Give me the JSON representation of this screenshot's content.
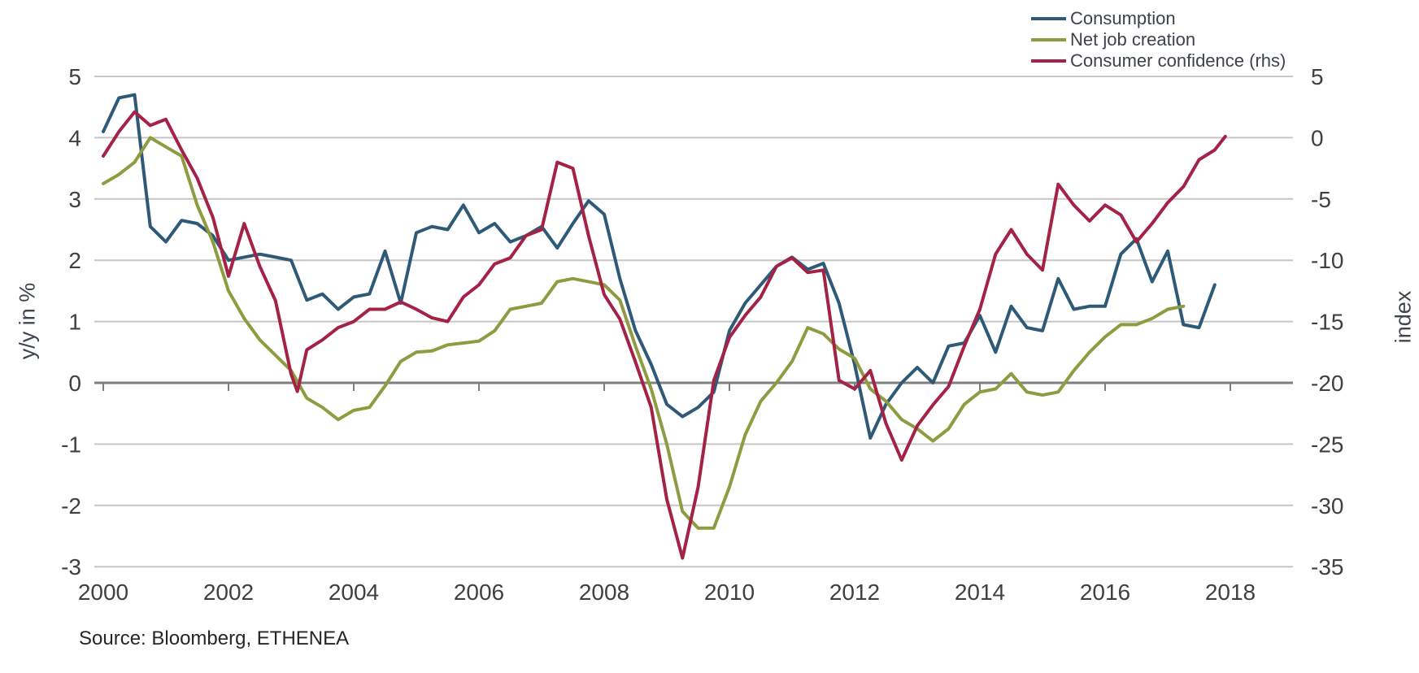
{
  "chart_data": {
    "type": "line",
    "title": "",
    "source": "Source: Bloomberg, ETHENEA",
    "left_axis": {
      "label": "y/y in %",
      "min": -3,
      "max": 5,
      "ticks": [
        5,
        4,
        3,
        2,
        1,
        0,
        -1,
        -2,
        -3
      ]
    },
    "right_axis": {
      "label": "index",
      "min": -35,
      "max": 5,
      "ticks": [
        5,
        0,
        -5,
        -10,
        -15,
        -20,
        -25,
        -30,
        -35
      ]
    },
    "x_axis": {
      "tick_years": [
        2000,
        2002,
        2004,
        2006,
        2008,
        2010,
        2012,
        2014,
        2016,
        2018
      ],
      "grid": "horizontal-only"
    },
    "legend_position": "top-right",
    "series": [
      {
        "name": "Consumption",
        "axis": "left",
        "color": "#2e5a78",
        "points": [
          [
            2000.0,
            4.1
          ],
          [
            2000.25,
            4.65
          ],
          [
            2000.5,
            4.7
          ],
          [
            2000.75,
            2.55
          ],
          [
            2001.0,
            2.3
          ],
          [
            2001.25,
            2.65
          ],
          [
            2001.5,
            2.6
          ],
          [
            2001.75,
            2.4
          ],
          [
            2002.0,
            2.0
          ],
          [
            2002.25,
            2.05
          ],
          [
            2002.5,
            2.1
          ],
          [
            2002.75,
            2.05
          ],
          [
            2003.0,
            2.0
          ],
          [
            2003.25,
            1.35
          ],
          [
            2003.5,
            1.45
          ],
          [
            2003.75,
            1.2
          ],
          [
            2004.0,
            1.4
          ],
          [
            2004.25,
            1.45
          ],
          [
            2004.5,
            2.15
          ],
          [
            2004.75,
            1.3
          ],
          [
            2005.0,
            2.45
          ],
          [
            2005.25,
            2.55
          ],
          [
            2005.5,
            2.5
          ],
          [
            2005.75,
            2.9
          ],
          [
            2006.0,
            2.45
          ],
          [
            2006.25,
            2.6
          ],
          [
            2006.5,
            2.3
          ],
          [
            2006.75,
            2.4
          ],
          [
            2007.0,
            2.55
          ],
          [
            2007.25,
            2.2
          ],
          [
            2007.5,
            2.6
          ],
          [
            2007.75,
            2.97
          ],
          [
            2008.0,
            2.75
          ],
          [
            2008.25,
            1.7
          ],
          [
            2008.5,
            0.85
          ],
          [
            2008.75,
            0.3
          ],
          [
            2009.0,
            -0.35
          ],
          [
            2009.25,
            -0.55
          ],
          [
            2009.5,
            -0.4
          ],
          [
            2009.75,
            -0.15
          ],
          [
            2010.0,
            0.85
          ],
          [
            2010.25,
            1.3
          ],
          [
            2010.5,
            1.6
          ],
          [
            2010.75,
            1.9
          ],
          [
            2011.0,
            2.05
          ],
          [
            2011.25,
            1.85
          ],
          [
            2011.5,
            1.95
          ],
          [
            2011.75,
            1.3
          ],
          [
            2012.0,
            0.3
          ],
          [
            2012.25,
            -0.9
          ],
          [
            2012.5,
            -0.35
          ],
          [
            2012.75,
            0.0
          ],
          [
            2013.0,
            0.25
          ],
          [
            2013.25,
            0.0
          ],
          [
            2013.5,
            0.6
          ],
          [
            2013.75,
            0.65
          ],
          [
            2014.0,
            1.1
          ],
          [
            2014.25,
            0.5
          ],
          [
            2014.5,
            1.25
          ],
          [
            2014.75,
            0.9
          ],
          [
            2015.0,
            0.85
          ],
          [
            2015.25,
            1.7
          ],
          [
            2015.5,
            1.2
          ],
          [
            2015.75,
            1.25
          ],
          [
            2016.0,
            1.25
          ],
          [
            2016.25,
            2.1
          ],
          [
            2016.5,
            2.35
          ],
          [
            2016.75,
            1.65
          ],
          [
            2017.0,
            2.15
          ],
          [
            2017.25,
            0.95
          ],
          [
            2017.5,
            0.9
          ],
          [
            2017.75,
            1.6
          ]
        ]
      },
      {
        "name": "Net job creation",
        "axis": "left",
        "color": "#8f9b40",
        "points": [
          [
            2000.0,
            3.25
          ],
          [
            2000.25,
            3.4
          ],
          [
            2000.5,
            3.6
          ],
          [
            2000.75,
            4.0
          ],
          [
            2001.0,
            3.85
          ],
          [
            2001.25,
            3.7
          ],
          [
            2001.5,
            2.9
          ],
          [
            2001.75,
            2.3
          ],
          [
            2002.0,
            1.5
          ],
          [
            2002.25,
            1.05
          ],
          [
            2002.5,
            0.7
          ],
          [
            2002.75,
            0.45
          ],
          [
            2003.0,
            0.2
          ],
          [
            2003.25,
            -0.25
          ],
          [
            2003.5,
            -0.4
          ],
          [
            2003.75,
            -0.6
          ],
          [
            2004.0,
            -0.45
          ],
          [
            2004.25,
            -0.4
          ],
          [
            2004.5,
            -0.05
          ],
          [
            2004.75,
            0.35
          ],
          [
            2005.0,
            0.5
          ],
          [
            2005.25,
            0.52
          ],
          [
            2005.5,
            0.62
          ],
          [
            2005.75,
            0.65
          ],
          [
            2006.0,
            0.68
          ],
          [
            2006.25,
            0.85
          ],
          [
            2006.5,
            1.2
          ],
          [
            2006.75,
            1.25
          ],
          [
            2007.0,
            1.3
          ],
          [
            2007.25,
            1.65
          ],
          [
            2007.5,
            1.7
          ],
          [
            2007.75,
            1.65
          ],
          [
            2008.0,
            1.6
          ],
          [
            2008.25,
            1.35
          ],
          [
            2008.5,
            0.6
          ],
          [
            2008.75,
            -0.1
          ],
          [
            2009.0,
            -1.0
          ],
          [
            2009.25,
            -2.1
          ],
          [
            2009.5,
            -2.37
          ],
          [
            2009.75,
            -2.37
          ],
          [
            2010.0,
            -1.7
          ],
          [
            2010.25,
            -0.85
          ],
          [
            2010.5,
            -0.3
          ],
          [
            2010.75,
            0.0
          ],
          [
            2011.0,
            0.35
          ],
          [
            2011.25,
            0.9
          ],
          [
            2011.5,
            0.8
          ],
          [
            2011.75,
            0.55
          ],
          [
            2012.0,
            0.4
          ],
          [
            2012.25,
            -0.1
          ],
          [
            2012.5,
            -0.3
          ],
          [
            2012.75,
            -0.6
          ],
          [
            2013.0,
            -0.75
          ],
          [
            2013.25,
            -0.95
          ],
          [
            2013.5,
            -0.75
          ],
          [
            2013.75,
            -0.35
          ],
          [
            2014.0,
            -0.15
          ],
          [
            2014.25,
            -0.1
          ],
          [
            2014.5,
            0.15
          ],
          [
            2014.75,
            -0.15
          ],
          [
            2015.0,
            -0.2
          ],
          [
            2015.25,
            -0.15
          ],
          [
            2015.5,
            0.2
          ],
          [
            2015.75,
            0.5
          ],
          [
            2016.0,
            0.75
          ],
          [
            2016.25,
            0.95
          ],
          [
            2016.5,
            0.95
          ],
          [
            2016.75,
            1.05
          ],
          [
            2017.0,
            1.2
          ],
          [
            2017.25,
            1.25
          ]
        ]
      },
      {
        "name": "Consumer confidence (rhs)",
        "axis": "right",
        "color": "#a32245",
        "points": [
          [
            2000.0,
            -1.5
          ],
          [
            2000.25,
            0.5
          ],
          [
            2000.5,
            2.1
          ],
          [
            2000.75,
            1.0
          ],
          [
            2001.0,
            1.5
          ],
          [
            2001.25,
            -1.0
          ],
          [
            2001.5,
            -3.3
          ],
          [
            2001.75,
            -6.5
          ],
          [
            2002.0,
            -11.3
          ],
          [
            2002.25,
            -7.0
          ],
          [
            2002.5,
            -10.5
          ],
          [
            2002.75,
            -13.3
          ],
          [
            2003.0,
            -19.3
          ],
          [
            2003.1,
            -20.7
          ],
          [
            2003.25,
            -17.3
          ],
          [
            2003.5,
            -16.5
          ],
          [
            2003.75,
            -15.5
          ],
          [
            2004.0,
            -15.0
          ],
          [
            2004.25,
            -14.0
          ],
          [
            2004.5,
            -14.0
          ],
          [
            2004.75,
            -13.4
          ],
          [
            2005.0,
            -14.0
          ],
          [
            2005.25,
            -14.7
          ],
          [
            2005.5,
            -15.0
          ],
          [
            2005.75,
            -13.0
          ],
          [
            2006.0,
            -12.0
          ],
          [
            2006.25,
            -10.3
          ],
          [
            2006.5,
            -9.8
          ],
          [
            2006.75,
            -8.0
          ],
          [
            2007.0,
            -7.5
          ],
          [
            2007.25,
            -2.0
          ],
          [
            2007.5,
            -2.5
          ],
          [
            2007.75,
            -8.0
          ],
          [
            2008.0,
            -12.8
          ],
          [
            2008.25,
            -14.8
          ],
          [
            2008.5,
            -18.3
          ],
          [
            2008.75,
            -22.0
          ],
          [
            2009.0,
            -29.5
          ],
          [
            2009.25,
            -34.3
          ],
          [
            2009.5,
            -28.5
          ],
          [
            2009.75,
            -19.8
          ],
          [
            2010.0,
            -16.3
          ],
          [
            2010.25,
            -14.5
          ],
          [
            2010.5,
            -13.0
          ],
          [
            2010.75,
            -10.5
          ],
          [
            2011.0,
            -9.8
          ],
          [
            2011.25,
            -11.0
          ],
          [
            2011.5,
            -10.8
          ],
          [
            2011.75,
            -19.8
          ],
          [
            2012.0,
            -20.5
          ],
          [
            2012.25,
            -19.0
          ],
          [
            2012.5,
            -23.3
          ],
          [
            2012.75,
            -26.3
          ],
          [
            2013.0,
            -23.5
          ],
          [
            2013.25,
            -21.8
          ],
          [
            2013.5,
            -20.3
          ],
          [
            2013.75,
            -17.0
          ],
          [
            2014.0,
            -14.0
          ],
          [
            2014.25,
            -9.5
          ],
          [
            2014.5,
            -7.5
          ],
          [
            2014.75,
            -9.5
          ],
          [
            2015.0,
            -10.8
          ],
          [
            2015.25,
            -3.8
          ],
          [
            2015.5,
            -5.5
          ],
          [
            2015.75,
            -6.8
          ],
          [
            2016.0,
            -5.5
          ],
          [
            2016.25,
            -6.3
          ],
          [
            2016.5,
            -8.5
          ],
          [
            2016.75,
            -7.0
          ],
          [
            2017.0,
            -5.3
          ],
          [
            2017.25,
            -4.0
          ],
          [
            2017.5,
            -1.8
          ],
          [
            2017.75,
            -1.0
          ],
          [
            2017.92,
            0.1
          ]
        ]
      }
    ]
  }
}
